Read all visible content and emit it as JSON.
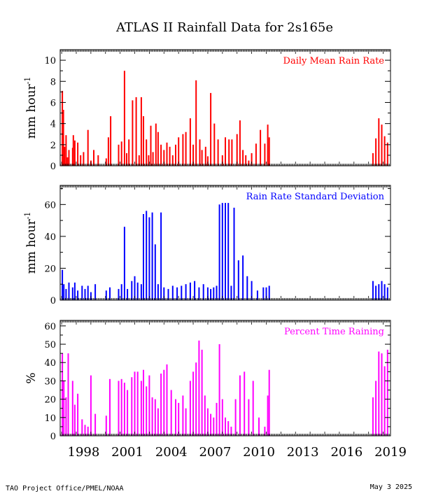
{
  "title": "ATLAS II Rainfall Data for 2s165e",
  "footer": {
    "left": "TAO Project Office/PMEL/NOAA",
    "right": "May  3 2025"
  },
  "x_axis": {
    "range": [
      1996.9,
      2019.5
    ],
    "tick_labels": [
      "1998",
      "2001",
      "2004",
      "2007",
      "2010",
      "2013",
      "2016",
      "2019"
    ],
    "tick_values": [
      1998,
      2001,
      2004,
      2007,
      2010,
      2013,
      2016,
      2019
    ]
  },
  "chart_data": [
    {
      "type": "bar",
      "legend": "Daily Mean Rain Rate",
      "ylabel": "mm hour",
      "ylabel_sup": "-1",
      "ylim": [
        0,
        11
      ],
      "yticks": [
        0,
        2,
        4,
        6,
        8,
        10
      ],
      "color": "#ff0000",
      "x": [
        1997.05,
        1997.12,
        1997.2,
        1997.3,
        1997.4,
        1997.5,
        1997.75,
        1997.8,
        1997.9,
        1998.1,
        1998.3,
        1998.5,
        1998.8,
        1999.0,
        1999.2,
        1999.5,
        2000.05,
        2000.2,
        2000.35,
        2000.9,
        2001.1,
        2001.3,
        2001.45,
        2001.6,
        2001.85,
        2002.1,
        2002.3,
        2002.45,
        2002.6,
        2002.8,
        2002.95,
        2003.1,
        2003.25,
        2003.45,
        2003.6,
        2003.8,
        2004.0,
        2004.2,
        2004.4,
        2004.6,
        2004.8,
        2005.0,
        2005.3,
        2005.5,
        2005.8,
        2006.0,
        2006.2,
        2006.45,
        2006.6,
        2006.85,
        2007.0,
        2007.2,
        2007.45,
        2007.7,
        2008.0,
        2008.2,
        2008.45,
        2008.65,
        2009.0,
        2009.2,
        2009.4,
        2009.6,
        2009.8,
        2010.0,
        2010.3,
        2010.6,
        2010.9,
        2011.1,
        2011.2,
        2018.3,
        2018.5,
        2018.7,
        2018.9,
        2019.1,
        2019.3
      ],
      "values": [
        7.1,
        5.3,
        1.8,
        2.9,
        0.8,
        1.5,
        1.7,
        2.9,
        2.4,
        2.2,
        1.0,
        1.3,
        3.4,
        0.5,
        1.5,
        1.0,
        0.7,
        2.7,
        4.7,
        2.0,
        2.3,
        9.0,
        1.2,
        2.5,
        6.2,
        6.5,
        1.0,
        6.5,
        4.7,
        2.5,
        1.0,
        3.8,
        1.3,
        4.0,
        3.2,
        2.0,
        1.5,
        2.2,
        1.8,
        1.0,
        2.0,
        2.7,
        3.0,
        3.2,
        4.5,
        2.0,
        8.1,
        2.5,
        1.5,
        1.8,
        0.9,
        6.9,
        4.0,
        2.5,
        1.0,
        2.7,
        2.5,
        2.5,
        3.0,
        4.3,
        1.5,
        1.0,
        0.5,
        1.2,
        2.1,
        3.4,
        2.1,
        3.9,
        2.7,
        1.2,
        2.6,
        4.5,
        3.9,
        2.8,
        2.2
      ]
    },
    {
      "type": "bar",
      "legend": "Rain Rate Standard Deviation",
      "ylabel": "mm hour",
      "ylabel_sup": "-1",
      "ylim": [
        0,
        72
      ],
      "yticks": [
        0,
        20,
        40,
        60
      ],
      "color": "#0000ff",
      "x": [
        1997.05,
        1997.15,
        1997.3,
        1997.5,
        1997.75,
        1997.9,
        1998.1,
        1998.4,
        1998.6,
        1998.8,
        1999.0,
        1999.3,
        2000.05,
        2000.3,
        2000.9,
        2001.1,
        2001.3,
        2001.5,
        2001.8,
        2002.0,
        2002.2,
        2002.45,
        2002.6,
        2002.8,
        2003.0,
        2003.2,
        2003.4,
        2003.6,
        2003.8,
        2004.0,
        2004.3,
        2004.6,
        2004.9,
        2005.2,
        2005.5,
        2005.8,
        2006.1,
        2006.4,
        2006.7,
        2007.0,
        2007.2,
        2007.4,
        2007.6,
        2007.8,
        2008.0,
        2008.2,
        2008.4,
        2008.6,
        2008.8,
        2009.1,
        2009.4,
        2009.7,
        2010.0,
        2010.4,
        2010.8,
        2011.0,
        2011.2,
        2018.3,
        2018.5,
        2018.7,
        2018.9,
        2019.1,
        2019.3
      ],
      "values": [
        19,
        10,
        7,
        11,
        8,
        11,
        6,
        9,
        7,
        9,
        5,
        10,
        6,
        8,
        7,
        10,
        46,
        7,
        12,
        15,
        11,
        10,
        54,
        56,
        52,
        55,
        35,
        10,
        55,
        8,
        7,
        9,
        8,
        9,
        10,
        11,
        12,
        8,
        10,
        8,
        7,
        8,
        9,
        60,
        61,
        61,
        61,
        9,
        58,
        25,
        28,
        15,
        12,
        6,
        8,
        8,
        9,
        12,
        9,
        10,
        12,
        10,
        8
      ]
    },
    {
      "type": "bar",
      "legend": "Percent Time Raining",
      "ylabel": "%",
      "ylim": [
        0,
        63
      ],
      "yticks": [
        0,
        10,
        20,
        30,
        40,
        50,
        60
      ],
      "color": "#ff00ff",
      "x": [
        1997.05,
        1997.15,
        1997.3,
        1997.45,
        1997.75,
        1997.9,
        1998.1,
        1998.4,
        1998.6,
        1998.8,
        1999.0,
        1999.3,
        2000.05,
        2000.3,
        2000.9,
        2001.1,
        2001.3,
        2001.5,
        2001.8,
        2002.0,
        2002.2,
        2002.45,
        2002.6,
        2002.8,
        2003.0,
        2003.2,
        2003.4,
        2003.6,
        2003.8,
        2004.0,
        2004.2,
        2004.5,
        2004.8,
        2005.0,
        2005.3,
        2005.5,
        2005.8,
        2006.0,
        2006.2,
        2006.4,
        2006.6,
        2006.8,
        2007.0,
        2007.2,
        2007.4,
        2007.6,
        2007.8,
        2008.0,
        2008.2,
        2008.4,
        2008.6,
        2008.9,
        2009.2,
        2009.5,
        2009.8,
        2010.1,
        2010.5,
        2010.9,
        2011.1,
        2011.2,
        2018.3,
        2018.5,
        2018.7,
        2018.9,
        2019.1,
        2019.3
      ],
      "values": [
        45,
        30,
        21,
        45,
        30,
        17,
        23,
        9,
        6,
        5,
        33,
        12,
        11,
        31,
        30,
        31,
        29,
        25,
        32,
        35,
        35,
        30,
        36,
        27,
        33,
        21,
        20,
        15,
        34,
        36,
        39,
        25,
        20,
        18,
        22,
        15,
        30,
        35,
        40,
        52,
        47,
        22,
        15,
        12,
        10,
        18,
        50,
        20,
        10,
        8,
        5,
        20,
        33,
        35,
        20,
        30,
        10,
        5,
        22,
        36,
        21,
        30,
        46,
        45,
        38,
        47
      ]
    }
  ]
}
